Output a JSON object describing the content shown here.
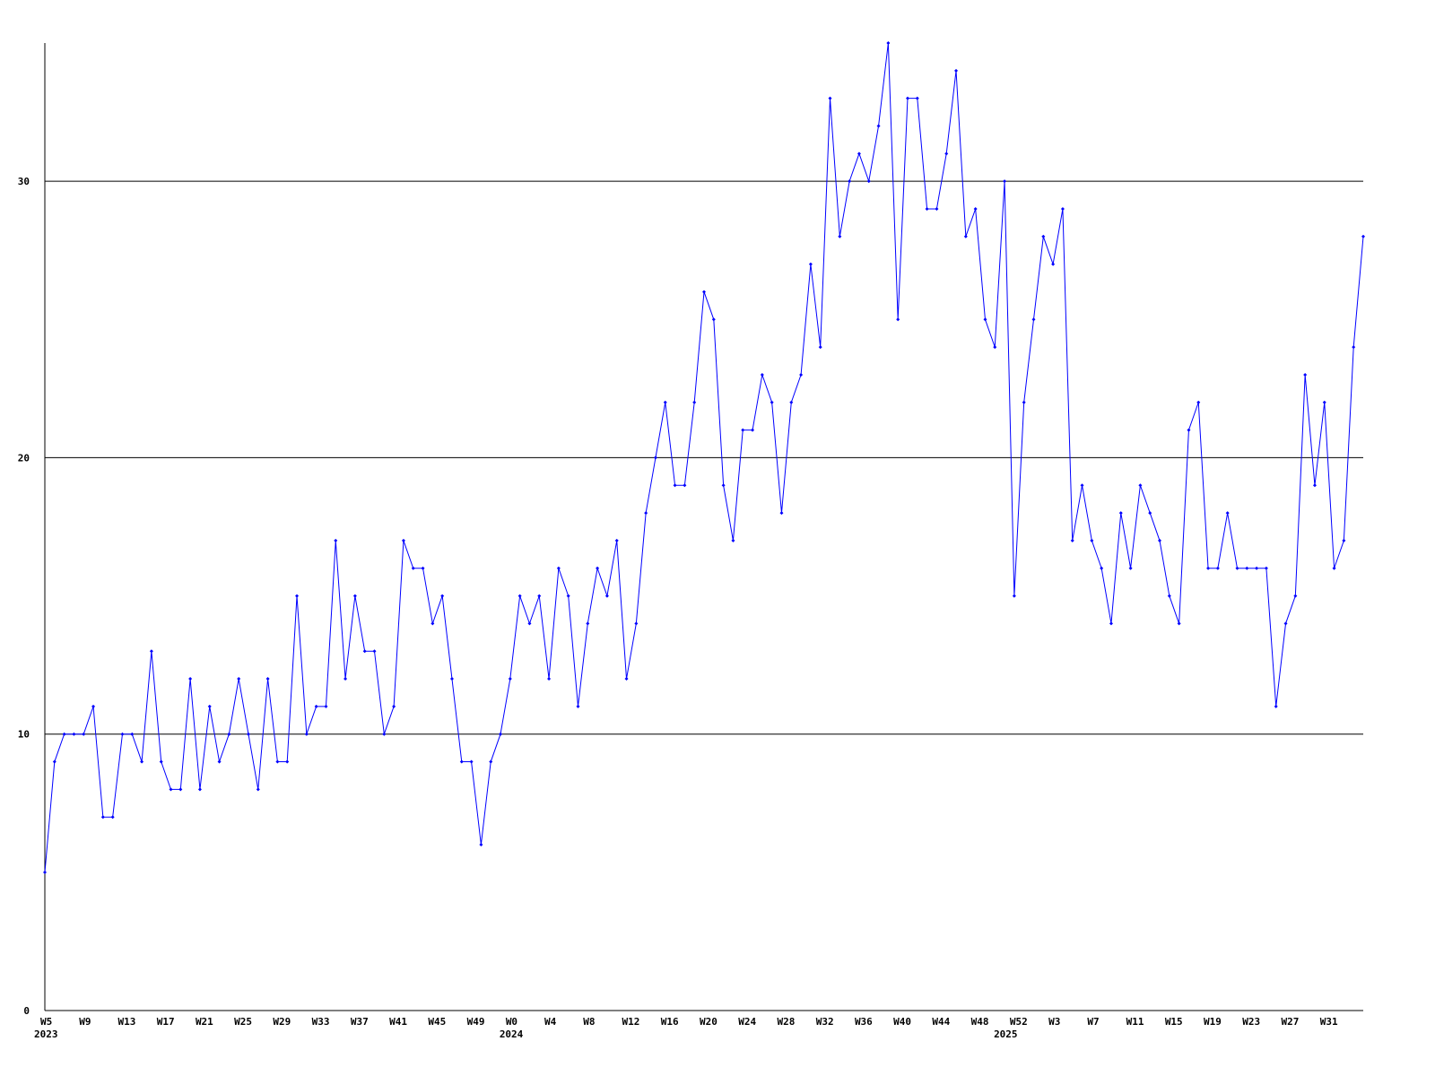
{
  "chart_data": {
    "type": "line",
    "color": "#0000ff",
    "markers": true,
    "grid": true,
    "categories": [
      "W5",
      null,
      null,
      null,
      "W9",
      null,
      null,
      null,
      "W13",
      null,
      null,
      null,
      "W17",
      null,
      null,
      null,
      "W21",
      null,
      null,
      null,
      "W25",
      null,
      null,
      null,
      "W29",
      null,
      null,
      null,
      "W33",
      null,
      null,
      null,
      "W37",
      null,
      null,
      null,
      "W41",
      null,
      null,
      null,
      "W45",
      null,
      null,
      null,
      "W49",
      null,
      null,
      null,
      "W0",
      null,
      null,
      null,
      "W4",
      null,
      null,
      null,
      "W8",
      null,
      null,
      null,
      "W12",
      null,
      null,
      null,
      "W16",
      null,
      null,
      null,
      "W20",
      null,
      null,
      null,
      "W24",
      null,
      null,
      null,
      "W28",
      null,
      null,
      null,
      "W32",
      null,
      null,
      null,
      "W36",
      null,
      null,
      null,
      "W40",
      null,
      null,
      null,
      "W44",
      null,
      null,
      null,
      "W48",
      null,
      null,
      null,
      "W52",
      null,
      null,
      null,
      "W3",
      null,
      null,
      null,
      "W7",
      null,
      null,
      null,
      "W11",
      null,
      null,
      null,
      "W15",
      null,
      null,
      null,
      "W19",
      null,
      null,
      null,
      "W23",
      null,
      null,
      null,
      "W27",
      null,
      null,
      null,
      "W31",
      null,
      null,
      null,
      null
    ],
    "years": [
      "2023",
      null,
      null,
      null,
      null,
      null,
      null,
      null,
      null,
      null,
      null,
      null,
      null,
      null,
      null,
      null,
      null,
      null,
      null,
      null,
      null,
      null,
      null,
      null,
      null,
      null,
      null,
      null,
      null,
      null,
      null,
      null,
      null,
      null,
      null,
      null,
      null,
      null,
      null,
      null,
      null,
      null,
      null,
      null,
      null,
      null,
      null,
      null,
      "2024",
      null,
      null,
      null,
      null,
      null,
      null,
      null,
      null,
      null,
      null,
      null,
      null,
      null,
      null,
      null,
      null,
      null,
      null,
      null,
      null,
      null,
      null,
      null,
      null,
      null,
      null,
      null,
      null,
      null,
      null,
      null,
      null,
      null,
      null,
      null,
      null,
      null,
      null,
      null,
      null,
      null,
      null,
      null,
      null,
      null,
      null,
      null,
      null,
      null,
      null,
      "2025",
      null,
      null,
      null,
      null,
      null,
      null,
      null,
      null,
      null,
      null,
      null,
      null,
      null,
      null,
      null,
      null,
      null,
      null,
      null,
      null,
      null,
      null,
      null,
      null,
      null,
      null,
      null,
      null,
      null,
      null,
      null,
      null,
      null,
      null,
      null
    ],
    "values": [
      5,
      9,
      10,
      10,
      10,
      11,
      7,
      7,
      10,
      10,
      9,
      13,
      9,
      8,
      8,
      12,
      8,
      11,
      9,
      10,
      12,
      10,
      8,
      12,
      9,
      9,
      15,
      10,
      11,
      11,
      17,
      12,
      15,
      13,
      13,
      10,
      11,
      17,
      16,
      16,
      14,
      15,
      12,
      9,
      9,
      6,
      9,
      10,
      12,
      15,
      14,
      15,
      12,
      16,
      15,
      11,
      14,
      16,
      15,
      17,
      12,
      14,
      18,
      20,
      22,
      19,
      19,
      22,
      26,
      25,
      19,
      17,
      21,
      21,
      23,
      22,
      18,
      22,
      23,
      27,
      24,
      33,
      28,
      30,
      31,
      30,
      32,
      35,
      25,
      33,
      33,
      29,
      29,
      31,
      34,
      28,
      29,
      25,
      24,
      30,
      15,
      22,
      25,
      28,
      27,
      29,
      17,
      19,
      17,
      16,
      14,
      18,
      16,
      19,
      18,
      17,
      15,
      14,
      21,
      22,
      16,
      16,
      18,
      16,
      16,
      16,
      16,
      11,
      14,
      15,
      23,
      19,
      22,
      16,
      17,
      24,
      28
    ],
    "ylim": [
      0,
      35
    ],
    "yticks": [
      0,
      10,
      20,
      30
    ]
  }
}
